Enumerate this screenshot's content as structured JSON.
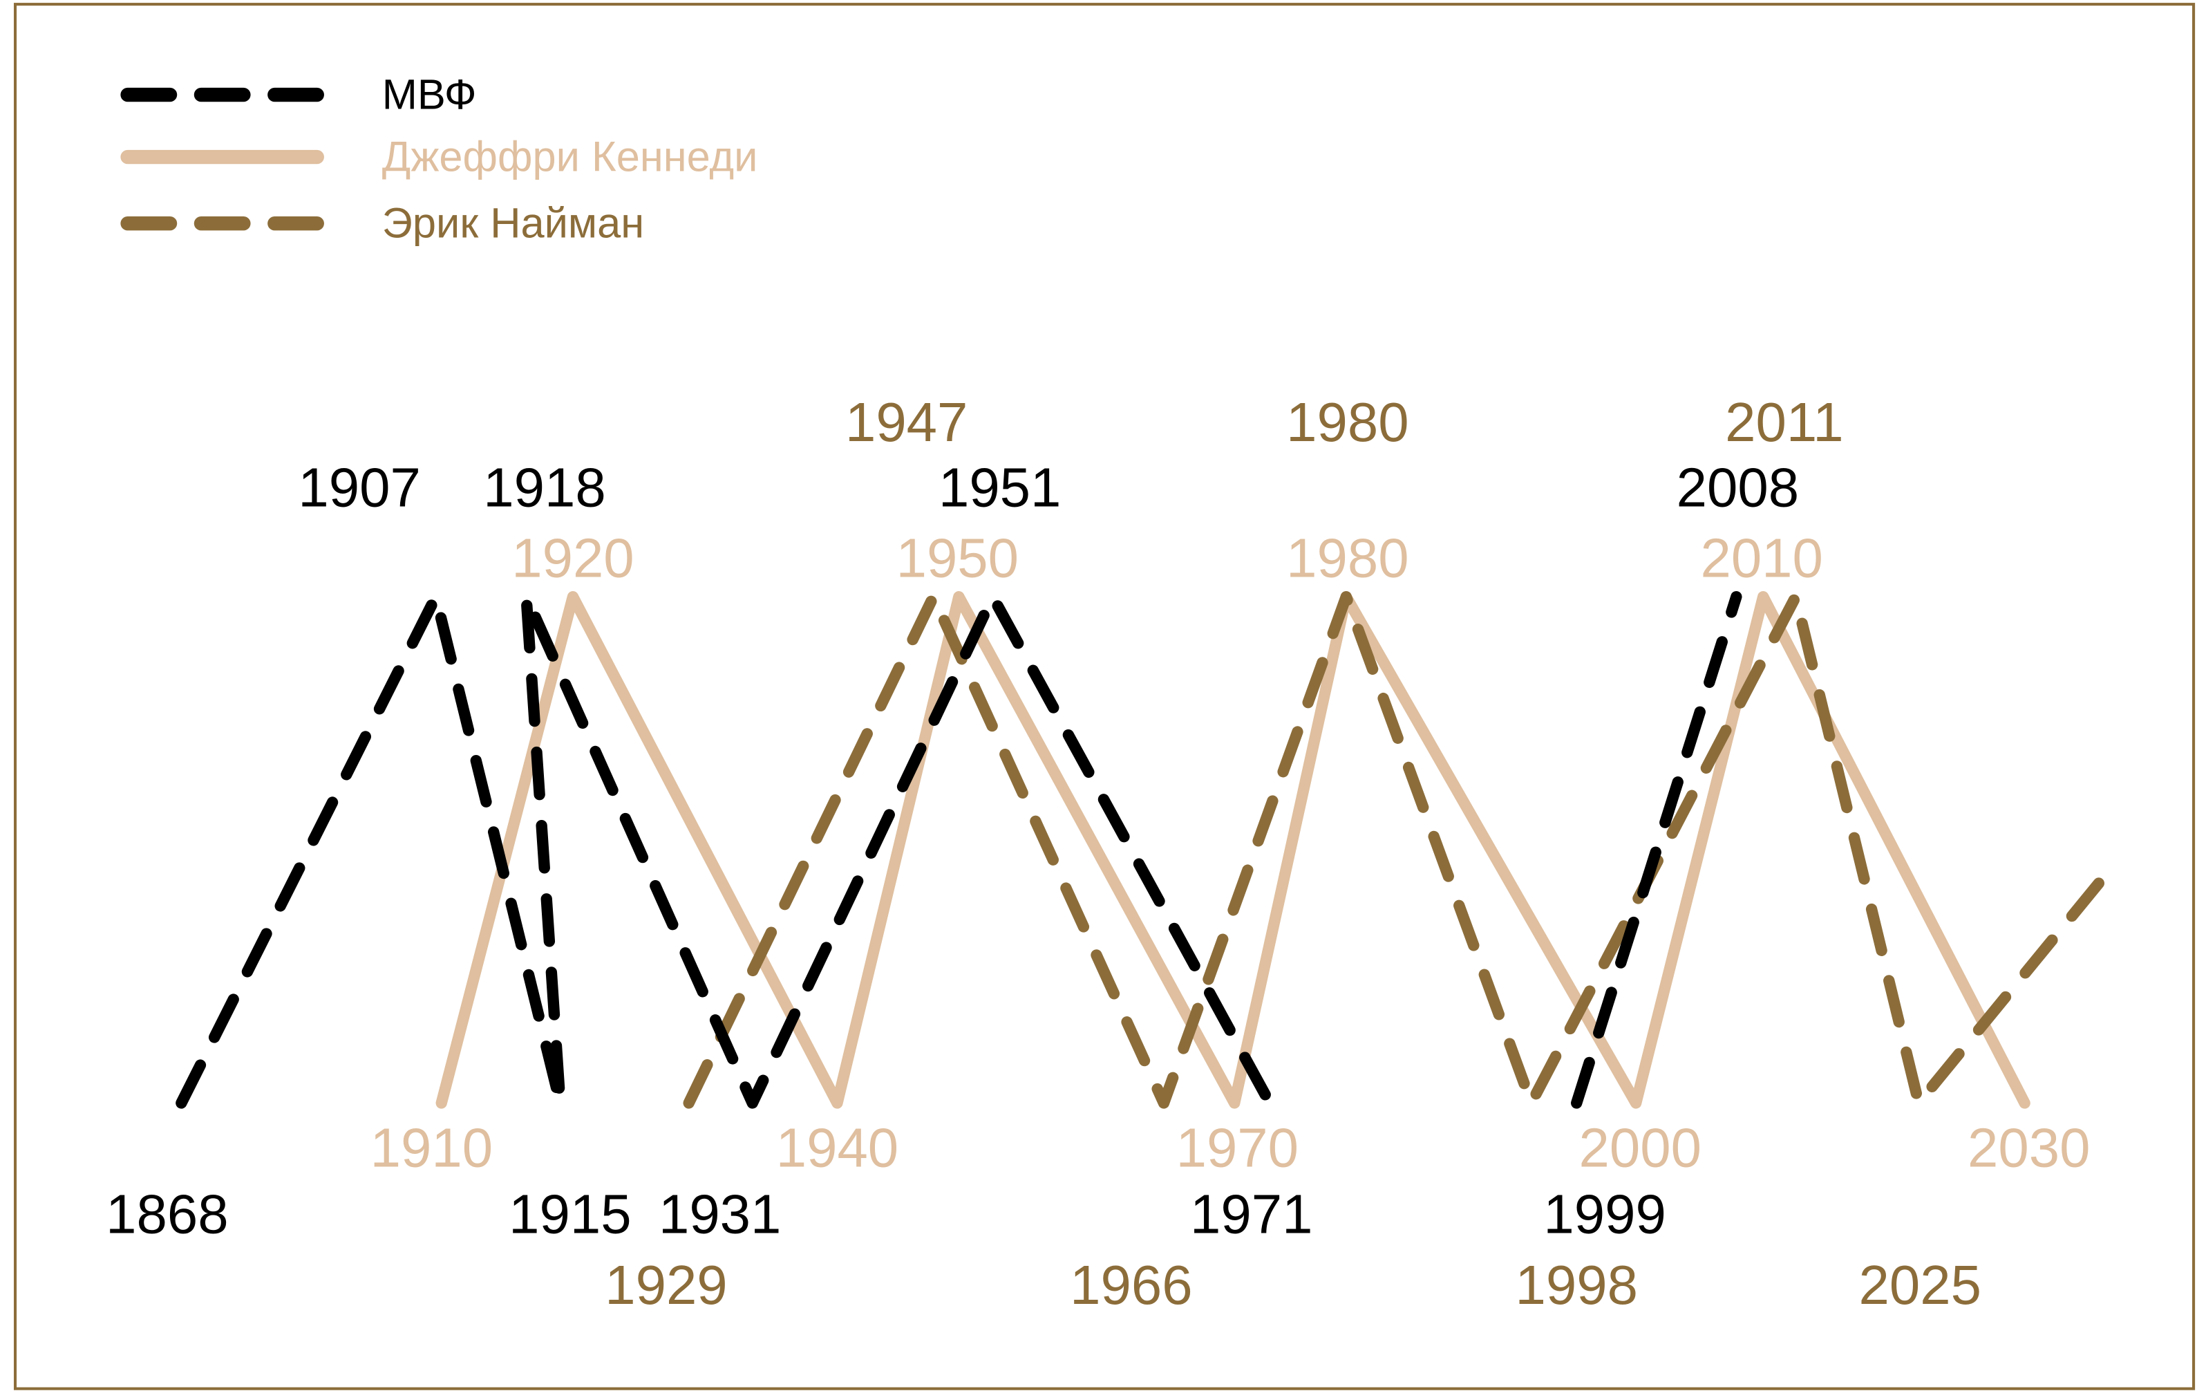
{
  "chart_data": {
    "type": "line",
    "title": "",
    "xlabel": "",
    "ylabel": "",
    "grid": false,
    "legend_position": "top-left",
    "y_levels": {
      "trough": 0,
      "peak": 1
    },
    "series": [
      {
        "name": "МВФ",
        "color": "#000000",
        "style": "dashed",
        "points": [
          {
            "year": 1868,
            "level": 0,
            "label": "1868"
          },
          {
            "year": 1907,
            "level": 1,
            "label": "1907"
          },
          {
            "year": 1915,
            "level": 0,
            "label": "1915"
          },
          {
            "year": 1918,
            "level": 1,
            "label": "1918"
          },
          {
            "year": 1931,
            "level": 0,
            "label": "1931"
          },
          {
            "year": 1951,
            "level": 1,
            "label": "1951"
          },
          {
            "year": 1971,
            "level": 0,
            "label": "1971"
          },
          {
            "year": 1999,
            "level": 0,
            "label": "1999"
          },
          {
            "year": 2008,
            "level": 1,
            "label": "2008"
          }
        ]
      },
      {
        "name": "Джеффри Кеннеди",
        "color": "#dfbf9f",
        "style": "solid",
        "points": [
          {
            "year": 1910,
            "level": 0,
            "label": "1910"
          },
          {
            "year": 1920,
            "level": 1,
            "label": "1920"
          },
          {
            "year": 1940,
            "level": 0,
            "label": "1940"
          },
          {
            "year": 1950,
            "level": 1,
            "label": "1950"
          },
          {
            "year": 1970,
            "level": 0,
            "label": "1970"
          },
          {
            "year": 1980,
            "level": 1,
            "label": "1980"
          },
          {
            "year": 2000,
            "level": 0,
            "label": "2000"
          },
          {
            "year": 2010,
            "level": 1,
            "label": "2010"
          },
          {
            "year": 2030,
            "level": 0,
            "label": "2030"
          }
        ]
      },
      {
        "name": "Эрик Найман",
        "color": "#8c6d3a",
        "style": "dashed",
        "points": [
          {
            "year": 1929,
            "level": 0,
            "label": "1929"
          },
          {
            "year": 1947,
            "level": 1,
            "label": "1947"
          },
          {
            "year": 1966,
            "level": 0,
            "label": "1966"
          },
          {
            "year": 1980,
            "level": 1,
            "label": "1980"
          },
          {
            "year": 1998,
            "level": 0,
            "label": "1998"
          },
          {
            "year": 2011,
            "level": 1,
            "label": "2011"
          },
          {
            "year": 2025,
            "level": 0,
            "label": "2025"
          },
          {
            "year": null,
            "level": 0.46,
            "label": null
          }
        ]
      }
    ]
  },
  "frame_color": "#8c6d3a"
}
